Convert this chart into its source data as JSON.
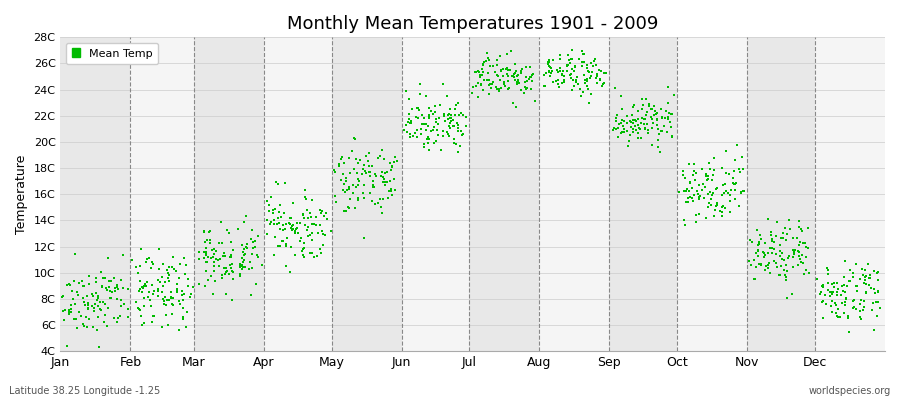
{
  "title": "Monthly Mean Temperatures 1901 - 2009",
  "ylabel": "Temperature",
  "xlabel_labels": [
    "Jan",
    "Feb",
    "Mar",
    "Apr",
    "May",
    "Jun",
    "Jul",
    "Aug",
    "Sep",
    "Oct",
    "Nov",
    "Dec"
  ],
  "ytick_labels": [
    "4C",
    "6C",
    "8C",
    "10C",
    "12C",
    "14C",
    "16C",
    "18C",
    "20C",
    "22C",
    "24C",
    "26C",
    "28C"
  ],
  "ytick_values": [
    4,
    6,
    8,
    10,
    12,
    14,
    16,
    18,
    20,
    22,
    24,
    26,
    28
  ],
  "ylim": [
    4,
    28
  ],
  "xlim": [
    0,
    365
  ],
  "dot_color": "#00bb00",
  "dot_size": 3,
  "legend_label": "Mean Temp",
  "footnote_left": "Latitude 38.25 Longitude -1.25",
  "footnote_right": "worldspecies.org",
  "bg_color": "#ffffff",
  "stripe_colors": [
    "#e8e8e8",
    "#f5f5f5"
  ],
  "n_years": 109,
  "monthly_means": [
    7.8,
    8.5,
    11.2,
    13.5,
    17.2,
    21.5,
    25.0,
    25.2,
    21.5,
    16.5,
    11.5,
    8.5
  ],
  "monthly_stds": [
    1.3,
    1.4,
    1.3,
    1.3,
    1.3,
    1.0,
    0.8,
    0.8,
    1.0,
    1.2,
    1.2,
    1.2
  ],
  "month_days": [
    31,
    28,
    31,
    30,
    31,
    30,
    31,
    31,
    30,
    31,
    30,
    31
  ],
  "month_starts": [
    0,
    31,
    59,
    90,
    120,
    151,
    181,
    212,
    243,
    273,
    304,
    334
  ]
}
